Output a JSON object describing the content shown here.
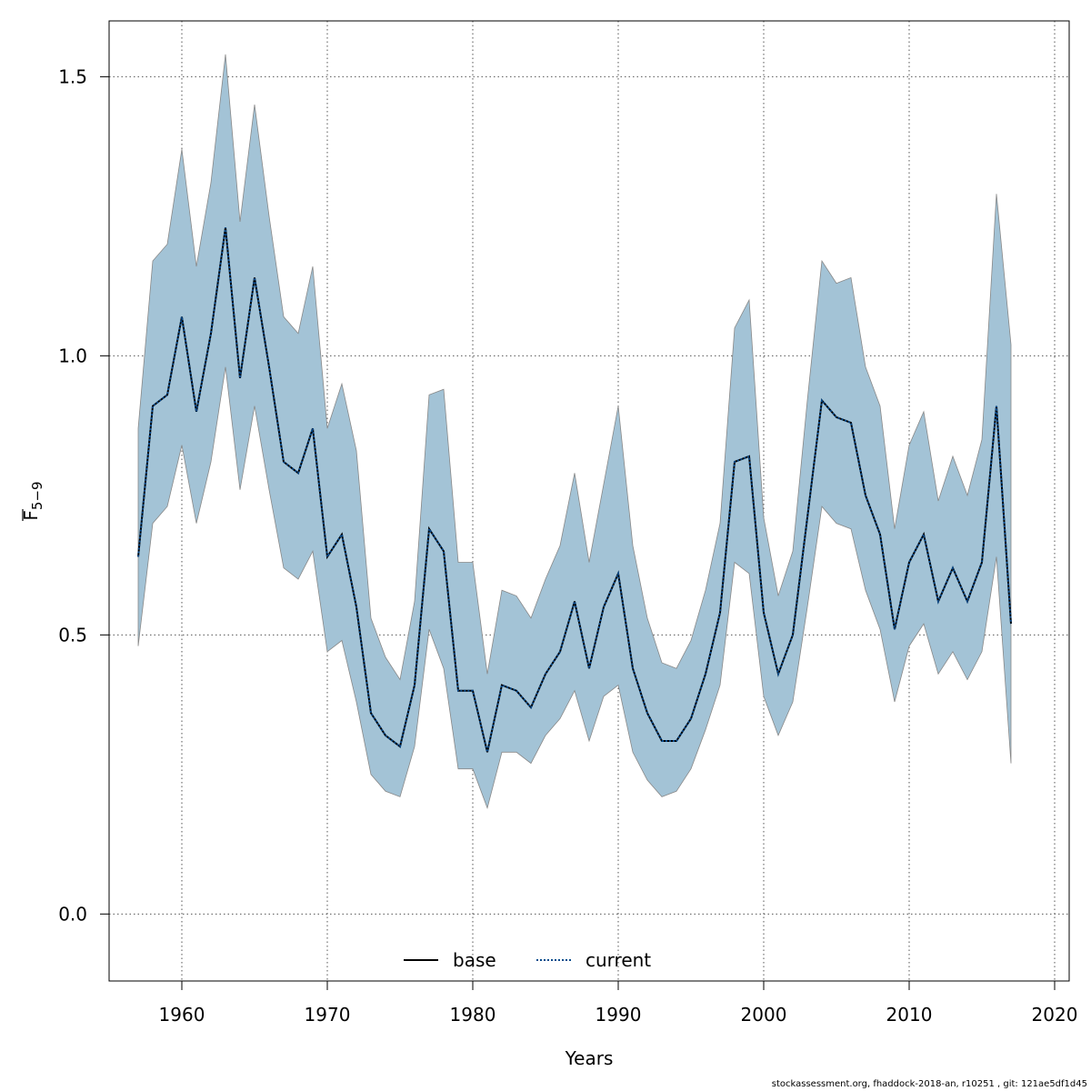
{
  "chart_data": {
    "type": "area",
    "xlabel": "Years",
    "ylabel_main": "F",
    "ylabel_sub": "5−9",
    "xlim": [
      1955,
      2021
    ],
    "ylim": [
      -0.12,
      1.6
    ],
    "x_ticks": [
      1960,
      1970,
      1980,
      1990,
      2000,
      2010,
      2020
    ],
    "y_ticks": [
      0.0,
      0.5,
      1.0,
      1.5
    ],
    "y_tick_labels": [
      "0.0",
      "0.5",
      "1.0",
      "1.5"
    ],
    "grid": true,
    "legend_position": "bottom-center",
    "legend": [
      {
        "label": "base",
        "style": "solid",
        "color": "#000000"
      },
      {
        "label": "current",
        "style": "dotted",
        "color": "#0a4b8c"
      }
    ],
    "band_color": "#a3c3d6",
    "band_edge_color": "#888888",
    "x": [
      1957,
      1958,
      1959,
      1960,
      1961,
      1962,
      1963,
      1964,
      1965,
      1966,
      1967,
      1968,
      1969,
      1970,
      1971,
      1972,
      1973,
      1974,
      1975,
      1976,
      1977,
      1978,
      1979,
      1980,
      1981,
      1982,
      1983,
      1984,
      1985,
      1986,
      1987,
      1988,
      1989,
      1990,
      1991,
      1992,
      1993,
      1994,
      1995,
      1996,
      1997,
      1998,
      1999,
      2000,
      2001,
      2002,
      2003,
      2004,
      2005,
      2006,
      2007,
      2008,
      2009,
      2010,
      2011,
      2012,
      2013,
      2014,
      2015,
      2016,
      2017
    ],
    "series": [
      {
        "name": "base",
        "values": [
          0.64,
          0.91,
          0.93,
          1.07,
          0.9,
          1.04,
          1.23,
          0.96,
          1.14,
          0.98,
          0.81,
          0.79,
          0.87,
          0.64,
          0.68,
          0.55,
          0.36,
          0.32,
          0.3,
          0.41,
          0.69,
          0.65,
          0.4,
          0.4,
          0.29,
          0.41,
          0.4,
          0.37,
          0.43,
          0.47,
          0.56,
          0.44,
          0.55,
          0.61,
          0.44,
          0.36,
          0.31,
          0.31,
          0.35,
          0.43,
          0.54,
          0.81,
          0.82,
          0.54,
          0.43,
          0.5,
          0.71,
          0.92,
          0.89,
          0.88,
          0.75,
          0.68,
          0.51,
          0.63,
          0.68,
          0.56,
          0.62,
          0.56,
          0.63,
          0.91,
          0.52
        ]
      },
      {
        "name": "current",
        "values": [
          0.64,
          0.91,
          0.93,
          1.07,
          0.9,
          1.04,
          1.23,
          0.96,
          1.14,
          0.98,
          0.81,
          0.79,
          0.87,
          0.64,
          0.68,
          0.55,
          0.36,
          0.32,
          0.3,
          0.41,
          0.69,
          0.65,
          0.4,
          0.4,
          0.29,
          0.41,
          0.4,
          0.37,
          0.43,
          0.47,
          0.56,
          0.44,
          0.55,
          0.61,
          0.44,
          0.36,
          0.31,
          0.31,
          0.35,
          0.43,
          0.54,
          0.81,
          0.82,
          0.54,
          0.43,
          0.5,
          0.71,
          0.92,
          0.89,
          0.88,
          0.75,
          0.68,
          0.51,
          0.63,
          0.68,
          0.56,
          0.62,
          0.56,
          0.63,
          0.91,
          0.52
        ]
      }
    ],
    "band_lower": [
      0.48,
      0.7,
      0.73,
      0.84,
      0.7,
      0.81,
      0.98,
      0.76,
      0.91,
      0.76,
      0.62,
      0.6,
      0.65,
      0.47,
      0.49,
      0.38,
      0.25,
      0.22,
      0.21,
      0.3,
      0.51,
      0.44,
      0.26,
      0.26,
      0.19,
      0.29,
      0.29,
      0.27,
      0.32,
      0.35,
      0.4,
      0.31,
      0.39,
      0.41,
      0.29,
      0.24,
      0.21,
      0.22,
      0.26,
      0.33,
      0.41,
      0.63,
      0.61,
      0.39,
      0.32,
      0.38,
      0.55,
      0.73,
      0.7,
      0.69,
      0.58,
      0.51,
      0.38,
      0.48,
      0.52,
      0.43,
      0.47,
      0.42,
      0.47,
      0.64,
      0.27
    ],
    "band_upper": [
      0.87,
      1.17,
      1.2,
      1.37,
      1.16,
      1.31,
      1.54,
      1.24,
      1.45,
      1.25,
      1.07,
      1.04,
      1.16,
      0.87,
      0.95,
      0.83,
      0.53,
      0.46,
      0.42,
      0.56,
      0.93,
      0.94,
      0.63,
      0.63,
      0.43,
      0.58,
      0.57,
      0.53,
      0.6,
      0.66,
      0.79,
      0.63,
      0.77,
      0.91,
      0.66,
      0.53,
      0.45,
      0.44,
      0.49,
      0.58,
      0.7,
      1.05,
      1.1,
      0.71,
      0.57,
      0.65,
      0.92,
      1.17,
      1.13,
      1.14,
      0.98,
      0.91,
      0.69,
      0.84,
      0.9,
      0.74,
      0.82,
      0.75,
      0.85,
      1.29,
      1.02
    ]
  },
  "footer": "stockassessment.org, fhaddock-2018-an, r10251 , git: 121ae5df1d45"
}
